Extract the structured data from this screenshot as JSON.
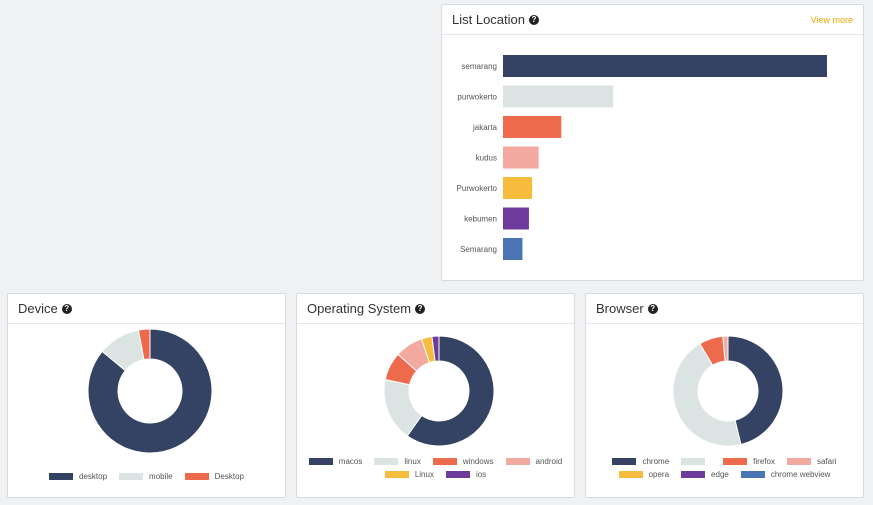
{
  "location_card": {
    "title": "List Location",
    "view_more": "View more",
    "chart_data": {
      "type": "bar",
      "orientation": "horizontal",
      "categories": [
        "semarang",
        "purwokerto",
        "jakarta",
        "kudus",
        "Purwokerto",
        "kebumen",
        "Semarang"
      ],
      "values": [
        100,
        34,
        18,
        11,
        9,
        8,
        6
      ],
      "colors": [
        "#344263",
        "#dce3e3",
        "#ee6a4d",
        "#f2aaa0",
        "#f7bb3d",
        "#6c3b9c",
        "#4a74b4"
      ],
      "xlim": [
        0,
        100
      ]
    }
  },
  "device_card": {
    "title": "Device",
    "chart_data": {
      "type": "pie",
      "donut": true,
      "labels": [
        "desktop",
        "mobile",
        "Desktop"
      ],
      "values": [
        86,
        11,
        3
      ],
      "colors": [
        "#344263",
        "#dce3e3",
        "#ee6a4d"
      ]
    }
  },
  "os_card": {
    "title": "Operating System",
    "chart_data": {
      "type": "pie",
      "donut": true,
      "labels": [
        "macos",
        "linux",
        "windows",
        "android",
        "Linux",
        "ios"
      ],
      "values": [
        58,
        18,
        8,
        8,
        3,
        2
      ],
      "colors": [
        "#344263",
        "#dce3e3",
        "#ee6a4d",
        "#f2aaa0",
        "#f7bb3d",
        "#6c3b9c"
      ]
    }
  },
  "browser_card": {
    "title": "Browser",
    "chart_data": {
      "type": "pie",
      "donut": true,
      "labels": [
        "chrome",
        "",
        "firefox",
        "safari",
        "opera",
        "edge",
        "chrome webview"
      ],
      "values": [
        46,
        45,
        7,
        1.5,
        0,
        0,
        0
      ],
      "colors": [
        "#344263",
        "#dce3e3",
        "#ee6a4d",
        "#f2aaa0",
        "#f7bb3d",
        "#6c3b9c",
        "#4a74b4"
      ]
    }
  }
}
